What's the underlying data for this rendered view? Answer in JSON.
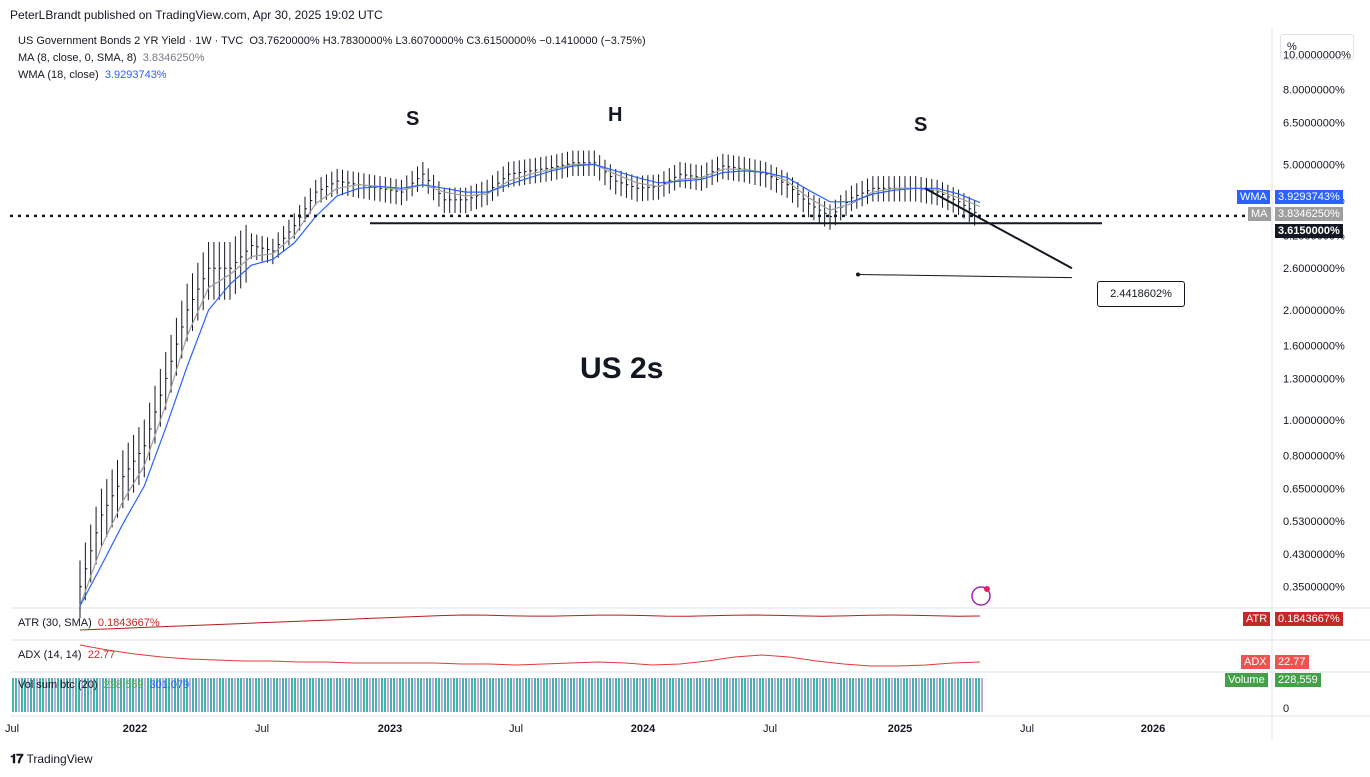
{
  "header": {
    "published": "PeterLBrandt published on TradingView.com, Apr 30, 2025 19:02 UTC"
  },
  "legend": {
    "symbol": "US Government Bonds 2 YR Yield · 1W · TVC",
    "ohlc": "O3.7620000% H3.7830000% L3.6070000% C3.6150000% −0.1410000 (−3.75%)",
    "ma_label": "MA (8, close, 0, SMA, 8)",
    "ma_value": "3.8346250%",
    "wma_label": "WMA (18, close)",
    "wma_value": "3.9293743%",
    "atr_label": "ATR (30, SMA)",
    "atr_value": "0.1843667%",
    "adx_label": "ADX (14, 14)",
    "adx_value": "22.77",
    "vol_label": "Vol sum btc (20)",
    "vol_value1": "228,559",
    "vol_value2": "301,079"
  },
  "annotations": {
    "left_shoulder": "S",
    "head": "H",
    "right_shoulder": "S",
    "title_text": "US 2s",
    "callout": "2.4418602%"
  },
  "price_scale": {
    "unit_button": "%",
    "wma_tag_label": "WMA",
    "wma_tag_value": "3.9293743%",
    "ma_tag_label": "MA",
    "ma_tag_value": "3.8346250%",
    "last_price": "3.6150000%",
    "atr_tag_label": "ATR",
    "atr_tag_value": "0.1843667%",
    "adx_tag_label": "ADX",
    "adx_tag_value": "22.77",
    "vol_tag_label": "Volume",
    "vol_tag_value": "228,559",
    "zero_label": "0"
  },
  "colors": {
    "bars": "#131722",
    "wma": "#2962ff",
    "ma": "#9e9e9e",
    "atr": "#b71c1c",
    "adx": "#e53935",
    "vol_teal": "#26a69a",
    "vol_purple": "#b39ddb",
    "ma_tag": "#9e9e9e",
    "wma_tag": "#2962ff",
    "last_tag": "#131722",
    "atr_tag": "#c62828",
    "adx_tag": "#ef5350",
    "vol_tag": "#43a047"
  },
  "footer": {
    "brand": "TradingView"
  },
  "chart_data": {
    "type": "line",
    "title": "",
    "xlabel": "",
    "ylabel": "",
    "y_scale": "log",
    "ylim": [
      0.31,
      11.8
    ],
    "x_ticks": [
      "Jul",
      "2022",
      "Jul",
      "2023",
      "Jul",
      "2024",
      "Jul",
      "2025",
      "Jul",
      "2026"
    ],
    "y_ticks": [
      10.0,
      8.0,
      6.5,
      5.0,
      4.0,
      3.2,
      2.6,
      2.0,
      1.6,
      1.3,
      1.0,
      0.8,
      0.65,
      0.53,
      0.43,
      0.35
    ],
    "y_tick_labels": [
      "10.0000000%",
      "8.0000000%",
      "6.5000000%",
      "5.0000000%",
      "4.0000000%",
      "3.2000000%",
      "2.6000000%",
      "2.0000000%",
      "1.6000000%",
      "1.3000000%",
      "1.0000000%",
      "0.8000000%",
      "0.6500000%",
      "0.5300000%",
      "0.4300000%",
      "0.3500000%"
    ],
    "x": [
      "2021-10",
      "2021-11",
      "2021-12",
      "2022-01",
      "2022-02",
      "2022-03",
      "2022-04",
      "2022-05",
      "2022-06",
      "2022-07",
      "2022-08",
      "2022-09",
      "2022-10",
      "2022-11",
      "2022-12",
      "2023-01",
      "2023-02",
      "2023-03",
      "2023-04",
      "2023-05",
      "2023-06",
      "2023-07",
      "2023-08",
      "2023-09",
      "2023-10",
      "2023-11",
      "2023-12",
      "2024-01",
      "2024-02",
      "2024-03",
      "2024-04",
      "2024-05",
      "2024-06",
      "2024-07",
      "2024-08",
      "2024-09",
      "2024-10",
      "2024-11",
      "2024-12",
      "2025-01",
      "2025-02",
      "2025-03",
      "2025-04"
    ],
    "series": [
      {
        "name": "US Government Bonds 2 YR Yield",
        "values": [
          0.35,
          0.55,
          0.7,
          0.85,
          1.3,
          2.0,
          2.6,
          2.6,
          3.0,
          2.9,
          3.4,
          4.2,
          4.5,
          4.4,
          4.3,
          4.2,
          4.7,
          4.0,
          4.0,
          4.2,
          4.7,
          4.8,
          4.9,
          5.05,
          5.05,
          4.5,
          4.3,
          4.35,
          4.7,
          4.6,
          4.95,
          4.85,
          4.7,
          4.4,
          3.9,
          3.6,
          4.05,
          4.3,
          4.3,
          4.3,
          4.2,
          3.95,
          3.615
        ]
      },
      {
        "name": "MA (8, close, 0, SMA, 8)",
        "values": [
          0.3,
          0.45,
          0.6,
          0.75,
          1.1,
          1.7,
          2.3,
          2.5,
          2.8,
          2.85,
          3.2,
          3.9,
          4.3,
          4.4,
          4.35,
          4.25,
          4.4,
          4.2,
          4.1,
          4.15,
          4.5,
          4.7,
          4.85,
          5.0,
          5.0,
          4.7,
          4.45,
          4.35,
          4.55,
          4.6,
          4.85,
          4.85,
          4.75,
          4.5,
          4.05,
          3.75,
          3.9,
          4.2,
          4.3,
          4.3,
          4.25,
          4.05,
          3.8346
        ]
      },
      {
        "name": "WMA (18, close)",
        "values": [
          0.28,
          0.4,
          0.52,
          0.66,
          0.95,
          1.4,
          2.0,
          2.35,
          2.65,
          2.75,
          3.05,
          3.6,
          4.1,
          4.3,
          4.35,
          4.3,
          4.4,
          4.3,
          4.2,
          4.2,
          4.4,
          4.6,
          4.8,
          4.95,
          5.0,
          4.8,
          4.6,
          4.45,
          4.5,
          4.55,
          4.75,
          4.8,
          4.75,
          4.6,
          4.25,
          3.95,
          3.95,
          4.15,
          4.25,
          4.3,
          4.3,
          4.15,
          3.9294
        ]
      }
    ],
    "indicators": {
      "atr_value": 0.1843667,
      "adx_value": 22.77,
      "vol_value": 228559
    },
    "neckline": 3.45,
    "target": 2.4418602,
    "legend_position": "top-left"
  }
}
